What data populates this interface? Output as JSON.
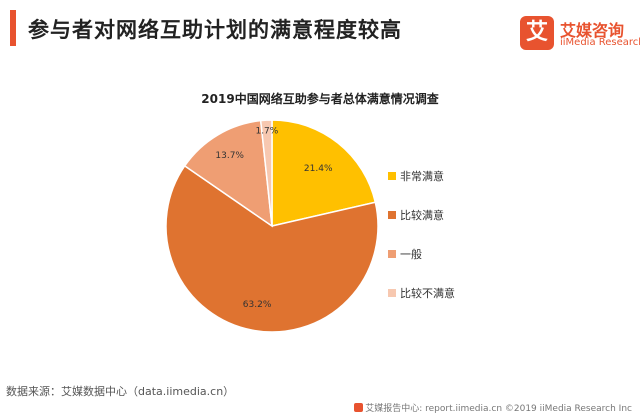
{
  "header": {
    "title": "参与者对网络互助计划的满意程度较高"
  },
  "logo": {
    "mark": "艾",
    "name": "艾媒咨询",
    "subtitle": "iiMedia Research"
  },
  "chart_data": {
    "type": "pie",
    "title": "2019中国网络互助参与者总体满意情况调查",
    "categories": [
      "非常满意",
      "比较满意",
      "一般",
      "比较不满意"
    ],
    "values": [
      21.4,
      63.2,
      13.7,
      1.7
    ],
    "value_labels": [
      "21.4%",
      "63.2%",
      "13.7%",
      "1.7%"
    ],
    "colors": [
      "#ffc000",
      "#df7330",
      "#ef9e73",
      "#f7c8b0"
    ],
    "start": "12 o'clock, clockwise",
    "legend_position": "right"
  },
  "source": "数据来源：艾媒数据中心（data.iimedia.cn）",
  "footer": "艾媒报告中心: report.iimedia.cn  ©2019  iiMedia Research  Inc"
}
